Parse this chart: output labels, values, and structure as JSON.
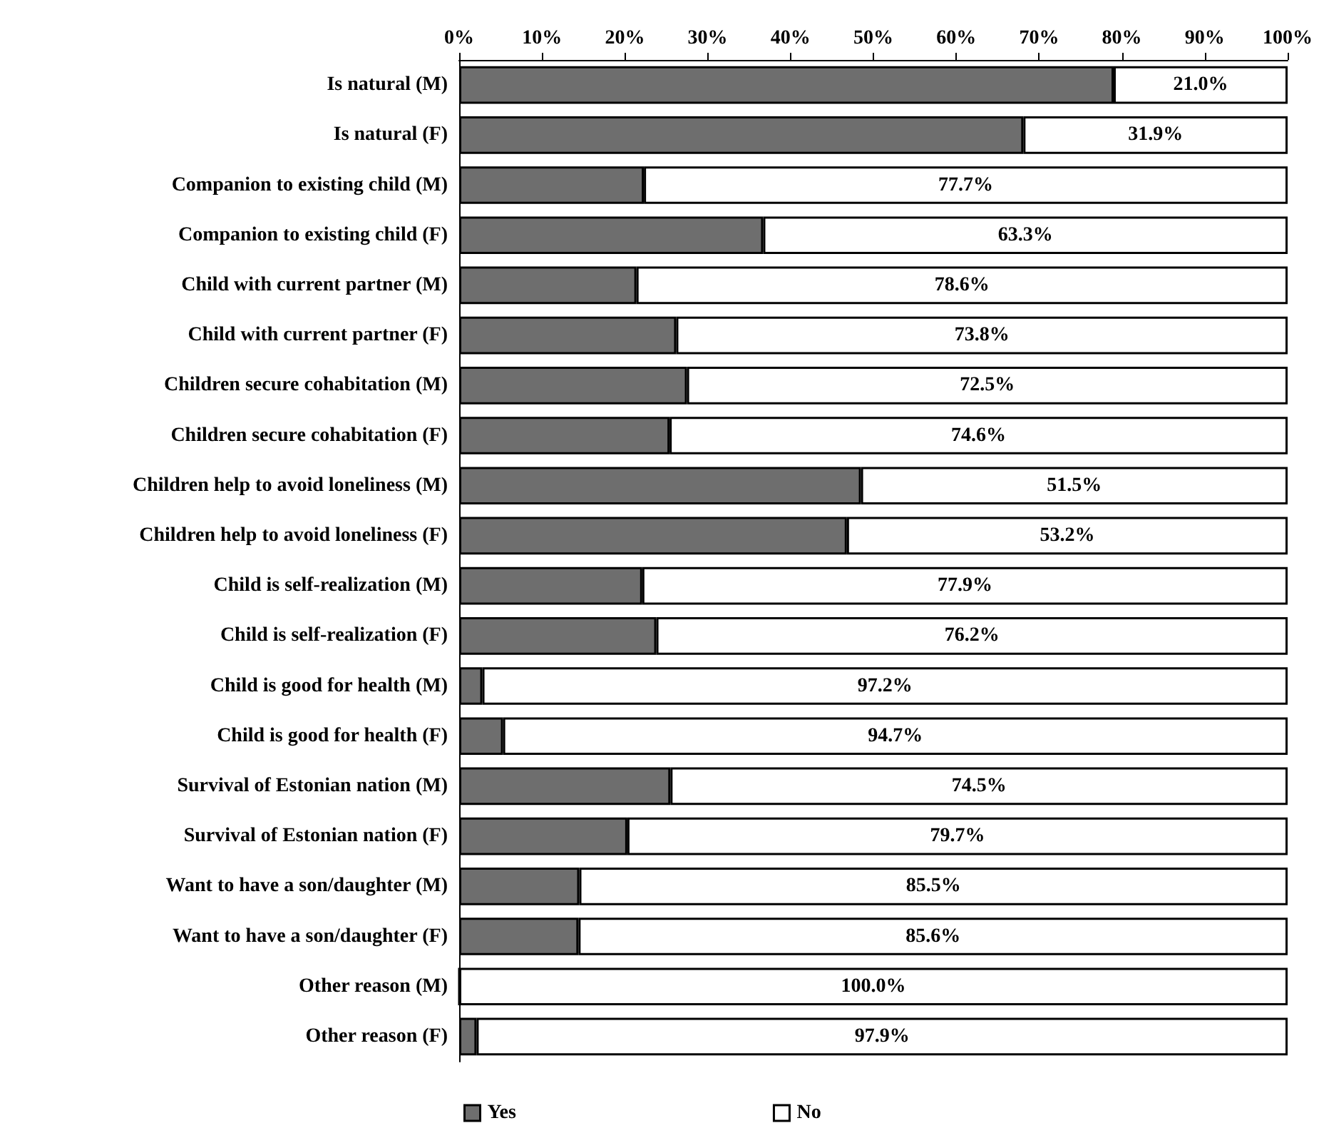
{
  "chart_data": {
    "type": "bar",
    "orientation": "horizontal",
    "stacked": true,
    "categories": [
      "Is natural (M)",
      "Is natural (F)",
      "Companion to existing child (M)",
      "Companion to existing child (F)",
      "Child with current partner (M)",
      "Child with current partner (F)",
      "Children secure cohabitation (M)",
      "Children secure cohabitation (F)",
      "Children help to avoid loneliness (M)",
      "Children help to avoid loneliness (F)",
      "Child is self-realization (M)",
      "Child is self-realization (F)",
      "Child is good for health (M)",
      "Child is good for health (F)",
      "Survival of Estonian nation (M)",
      "Survival of Estonian nation (F)",
      "Want to have a son/daughter (M)",
      "Want to have a son/daughter (F)",
      "Other reason (M)",
      "Other reason (F)"
    ],
    "series": [
      {
        "name": "Yes",
        "color": "#6e6e6e",
        "values": [
          79.0,
          68.1,
          22.3,
          36.7,
          21.4,
          26.2,
          27.5,
          25.4,
          48.5,
          46.8,
          22.1,
          23.8,
          2.8,
          5.3,
          25.5,
          20.3,
          14.5,
          14.4,
          0.0,
          2.1
        ]
      },
      {
        "name": "No",
        "color": "#ffffff",
        "values": [
          21.0,
          31.9,
          77.7,
          63.3,
          78.6,
          73.8,
          72.5,
          74.6,
          51.5,
          53.2,
          77.9,
          76.2,
          97.2,
          94.7,
          74.5,
          79.7,
          85.5,
          85.6,
          100.0,
          97.9
        ],
        "value_labels": [
          "21.0%",
          "31.9%",
          "77.7%",
          "63.3%",
          "78.6%",
          "73.8%",
          "72.5%",
          "74.6%",
          "51.5%",
          "53.2%",
          "77.9%",
          "76.2%",
          "97.2%",
          "94.7%",
          "74.5%",
          "79.7%",
          "85.5%",
          "85.6%",
          "100.0%",
          "97.9%"
        ]
      }
    ],
    "xlim": [
      0,
      100
    ],
    "xticks": [
      {
        "value": 0,
        "label": "0%"
      },
      {
        "value": 10,
        "label": "10%"
      },
      {
        "value": 20,
        "label": "20%"
      },
      {
        "value": 30,
        "label": "30%"
      },
      {
        "value": 40,
        "label": "40%"
      },
      {
        "value": 50,
        "label": "50%"
      },
      {
        "value": 60,
        "label": "60%"
      },
      {
        "value": 70,
        "label": "70%"
      },
      {
        "value": 80,
        "label": "80%"
      },
      {
        "value": 90,
        "label": "90%"
      },
      {
        "value": 100,
        "label": "100%"
      }
    ],
    "grid": false,
    "legend": "bottom"
  }
}
